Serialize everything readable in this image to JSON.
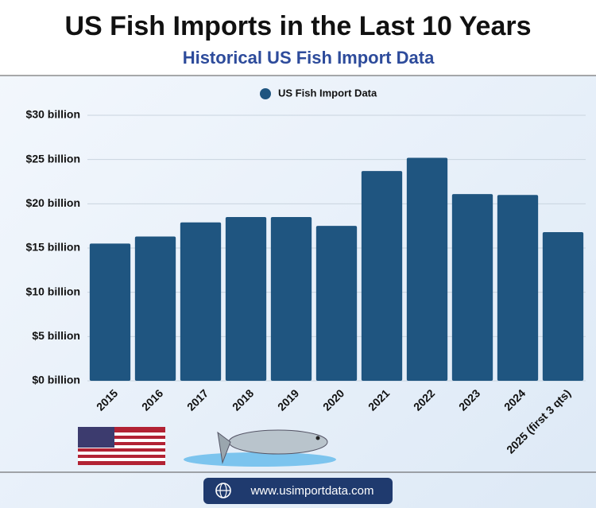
{
  "chart_data": {
    "type": "bar",
    "title": "US Fish Imports in the Last 10 Years",
    "subtitle": "Historical US Fish Import Data",
    "legend": "top",
    "series": [
      {
        "name": "US Fish Import Data",
        "color": "#1f5580",
        "values": [
          15.5,
          16.3,
          17.9,
          18.5,
          18.5,
          17.5,
          23.7,
          25.2,
          21.1,
          21.0,
          16.8
        ]
      }
    ],
    "categories": [
      "2015",
      "2016",
      "2017",
      "2018",
      "2019",
      "2020",
      "2021",
      "2022",
      "2023",
      "2024",
      "2025 (first 3 qts)"
    ],
    "ylim": [
      0,
      30
    ],
    "yticks": [
      {
        "value": 0,
        "label": "$0 billion"
      },
      {
        "value": 5,
        "label": "$5 billion"
      },
      {
        "value": 10,
        "label": "$10 billion"
      },
      {
        "value": 15,
        "label": "$15 billion"
      },
      {
        "value": 20,
        "label": "$20 billion"
      },
      {
        "value": 25,
        "label": "$25 billion"
      },
      {
        "value": 30,
        "label": "$30 billion"
      }
    ],
    "grid": true,
    "footer": "www.usimportdata.com"
  }
}
